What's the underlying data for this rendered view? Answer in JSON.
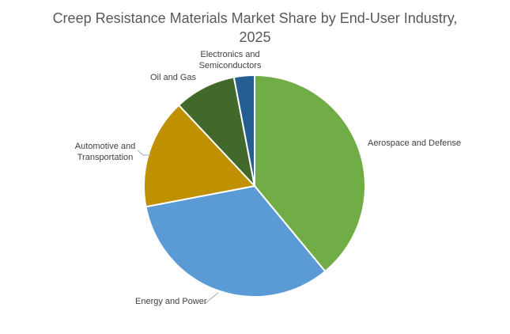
{
  "chart_data": {
    "type": "pie",
    "title_lines": [
      "Creep Resistance Materials Market Share by End-User Industry,",
      "2025"
    ],
    "slices": [
      {
        "label_lines": [
          "Aerospace and Defense"
        ],
        "value": 39,
        "color": "#70AD47"
      },
      {
        "label_lines": [
          "Energy and Power"
        ],
        "value": 33,
        "color": "#5B9BD5"
      },
      {
        "label_lines": [
          "Automotive and",
          "Transportation"
        ],
        "value": 16,
        "color": "#BF9000"
      },
      {
        "label_lines": [
          "Oil and Gas"
        ],
        "value": 9,
        "color": "#43682B"
      },
      {
        "label_lines": [
          "Electronics and",
          "Semiconductors"
        ],
        "value": 3,
        "color": "#255E91"
      }
    ],
    "start_angle_deg": 0,
    "direction": "clockwise"
  }
}
